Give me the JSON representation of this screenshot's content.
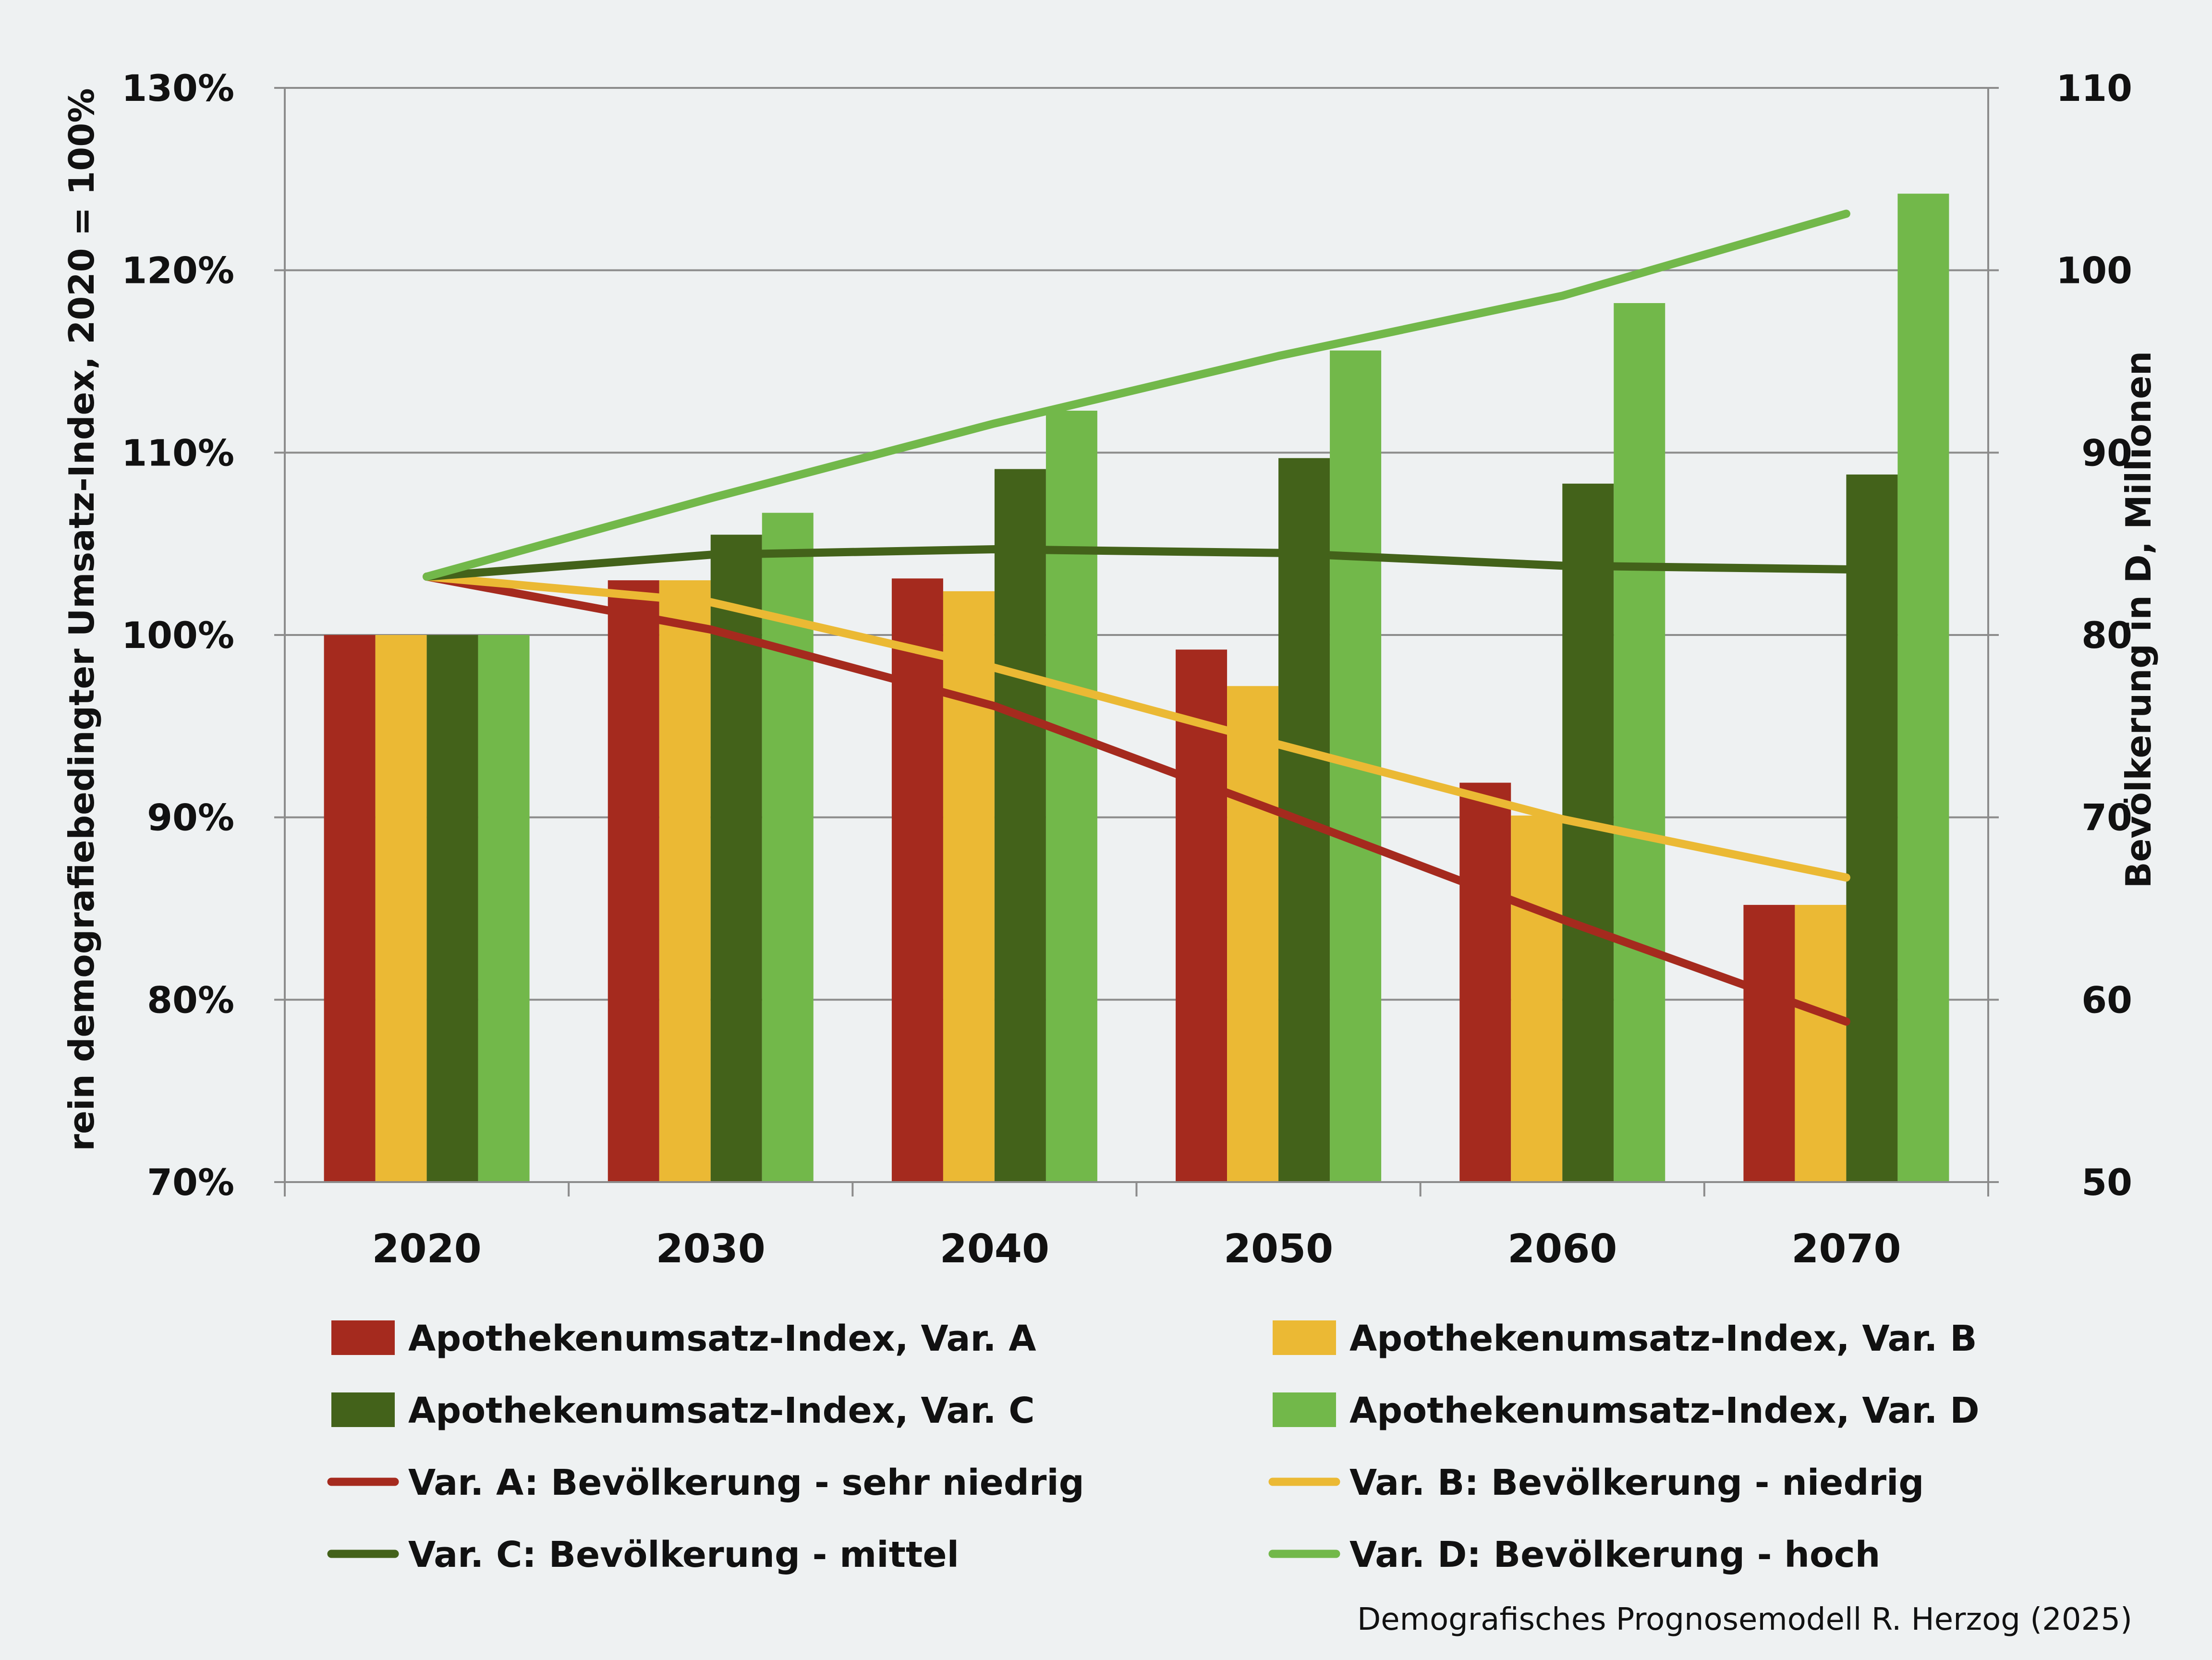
{
  "chart_data": {
    "type": "bar",
    "title": "",
    "categories": [
      "2020",
      "2030",
      "2040",
      "2050",
      "2060",
      "2070"
    ],
    "ylabel_left": "rein demografiebedingter  Umsatz-Index, 2020 = 100%",
    "ylabel_right": "Bevölkerung in D, Millionen",
    "ylim_left": [
      70,
      130
    ],
    "ylim_right": [
      50,
      110
    ],
    "yticks_left": [
      "70%",
      "80%",
      "90%",
      "100%",
      "110%",
      "120%",
      "130%"
    ],
    "yticks_right": [
      "50",
      "60",
      "70",
      "80",
      "90",
      "100",
      "110"
    ],
    "grid": "horizontal",
    "legend_position": "bottom",
    "bar_series": [
      {
        "name": "Apothekenumsatz-Index, Var. A",
        "color": "#a52a1e",
        "values": [
          100,
          103,
          103.1,
          99.2,
          91.9,
          85.2
        ]
      },
      {
        "name": "Apothekenumsatz-Index, Var. B",
        "color": "#ebb934",
        "values": [
          100,
          103,
          102.4,
          97.2,
          90.1,
          85.2
        ]
      },
      {
        "name": "Apothekenumsatz-Index, Var. C",
        "color": "#43621a",
        "values": [
          100,
          105.5,
          109.1,
          109.7,
          108.3,
          108.8
        ]
      },
      {
        "name": "Apothekenumsatz-Index, Var. D",
        "color": "#72b84a",
        "values": [
          100,
          106.7,
          112.3,
          115.6,
          118.2,
          124.2
        ]
      }
    ],
    "line_series": [
      {
        "name": "Var. A: Bevölkerung - sehr niedrig",
        "color": "#a52a1e",
        "values": [
          83.2,
          80.3,
          76.1,
          70.3,
          64.4,
          58.8
        ]
      },
      {
        "name": "Var. B: Bevölkerung - niedrig",
        "color": "#ebb934",
        "values": [
          83.2,
          81.8,
          78.2,
          74.0,
          69.9,
          66.7
        ]
      },
      {
        "name": "Var. C: Bevölkerung - mittel",
        "color": "#43621a",
        "values": [
          83.2,
          84.4,
          84.7,
          84.5,
          83.8,
          83.6
        ]
      },
      {
        "name": "Var. D: Bevölkerung - hoch",
        "color": "#72b84a",
        "values": [
          83.2,
          87.5,
          91.6,
          95.3,
          98.6,
          103.1
        ]
      }
    ],
    "source": "Demografisches Prognosemodell R. Herzog (2025)"
  }
}
